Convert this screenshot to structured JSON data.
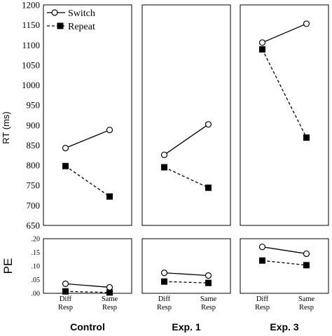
{
  "chart_data": {
    "type": "line",
    "categories": [
      "Diff\nResp",
      "Same\nResp"
    ],
    "legend": {
      "placement": "top-left",
      "entries": [
        {
          "label": "Switch",
          "marker": "open-circle",
          "line": "solid"
        },
        {
          "label": "Repeat",
          "marker": "filled-square",
          "line": "dashed"
        }
      ]
    },
    "rt": {
      "ylabel": "RT (ms)",
      "ylim": [
        650,
        1200
      ],
      "ticks": [
        650,
        700,
        750,
        800,
        850,
        900,
        950,
        1000,
        1050,
        1100,
        1150,
        1200
      ]
    },
    "pe": {
      "ylabel": "PE",
      "ylim": [
        0,
        0.2
      ],
      "ticks": [
        0,
        0.05,
        0.1,
        0.15,
        0.2
      ],
      "tick_labels": [
        ".00",
        ".05",
        ".10",
        ".15",
        ".20"
      ]
    },
    "panels": [
      {
        "title": "Control",
        "rt": {
          "Switch": [
            843,
            888
          ],
          "Repeat": [
            798,
            722
          ]
        },
        "pe": {
          "Switch": [
            0.035,
            0.022
          ],
          "Repeat": [
            0.007,
            0.003
          ]
        }
      },
      {
        "title": "Exp. 1",
        "rt": {
          "Switch": [
            826,
            902
          ],
          "Repeat": [
            795,
            744
          ]
        },
        "pe": {
          "Switch": [
            0.075,
            0.065
          ],
          "Repeat": [
            0.043,
            0.038
          ]
        }
      },
      {
        "title": "Exp. 3",
        "rt": {
          "Switch": [
            1106,
            1153
          ],
          "Repeat": [
            1089,
            869
          ]
        },
        "pe": {
          "Switch": [
            0.17,
            0.145
          ],
          "Repeat": [
            0.12,
            0.103
          ]
        }
      }
    ]
  }
}
